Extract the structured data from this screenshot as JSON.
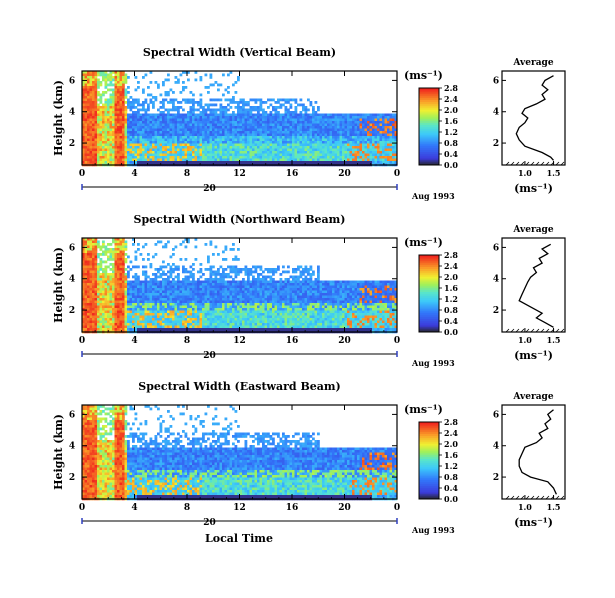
{
  "chart_data": [
    {
      "type": "heatmap",
      "title": "Spectral Width (Vertical Beam)",
      "ylabel": "Height (km)",
      "xlabel": "",
      "x_ticks": [
        "0",
        "4",
        "8",
        "12",
        "16",
        "20",
        "0"
      ],
      "y_ticks": [
        "2",
        "4",
        "6"
      ],
      "xlim": [
        0,
        24
      ],
      "ylim": [
        0.6,
        6.6
      ],
      "date_label": "20",
      "month_label": "Aug 1993",
      "colorbar": {
        "unit": "(ms⁻¹)",
        "ticks": [
          "0.0",
          "0.4",
          "0.8",
          "1.2",
          "1.6",
          "2.0",
          "2.4",
          "2.8"
        ]
      },
      "average": {
        "title": "Average",
        "unit": "(ms⁻¹)",
        "x_ticks": [
          "1.0",
          "1.5"
        ],
        "xlim": [
          0.6,
          1.7
        ],
        "y_ticks": [
          "2",
          "4",
          "6"
        ],
        "profile": [
          [
            1.5,
            0.9
          ],
          [
            1.45,
            1.1
          ],
          [
            1.3,
            1.4
          ],
          [
            1.0,
            1.8
          ],
          [
            0.9,
            2.2
          ],
          [
            0.85,
            2.6
          ],
          [
            0.9,
            3.0
          ],
          [
            1.0,
            3.3
          ],
          [
            1.05,
            3.6
          ],
          [
            0.95,
            3.9
          ],
          [
            1.0,
            4.2
          ],
          [
            1.2,
            4.5
          ],
          [
            1.35,
            4.8
          ],
          [
            1.3,
            5.1
          ],
          [
            1.4,
            5.4
          ],
          [
            1.3,
            5.7
          ],
          [
            1.35,
            6.0
          ],
          [
            1.5,
            6.3
          ]
        ]
      }
    },
    {
      "type": "heatmap",
      "title": "Spectral Width (Northward Beam)",
      "ylabel": "Height (km)",
      "xlabel": "",
      "x_ticks": [
        "0",
        "4",
        "8",
        "12",
        "16",
        "20",
        "0"
      ],
      "y_ticks": [
        "2",
        "4",
        "6"
      ],
      "xlim": [
        0,
        24
      ],
      "ylim": [
        0.6,
        6.6
      ],
      "date_label": "20",
      "month_label": "Aug 1993",
      "colorbar": {
        "unit": "(ms⁻¹)",
        "ticks": [
          "0.0",
          "0.4",
          "0.8",
          "1.2",
          "1.6",
          "2.0",
          "2.4",
          "2.8"
        ]
      },
      "average": {
        "title": "Average",
        "unit": "(ms⁻¹)",
        "x_ticks": [
          "1.0",
          "1.5"
        ],
        "xlim": [
          0.6,
          1.7
        ],
        "y_ticks": [
          "2",
          "4",
          "6"
        ],
        "profile": [
          [
            1.5,
            0.9
          ],
          [
            1.35,
            1.2
          ],
          [
            1.2,
            1.5
          ],
          [
            1.3,
            1.8
          ],
          [
            1.1,
            2.2
          ],
          [
            0.9,
            2.6
          ],
          [
            0.95,
            3.0
          ],
          [
            1.0,
            3.4
          ],
          [
            1.05,
            3.8
          ],
          [
            1.1,
            4.1
          ],
          [
            1.2,
            4.4
          ],
          [
            1.15,
            4.7
          ],
          [
            1.3,
            5.0
          ],
          [
            1.25,
            5.3
          ],
          [
            1.4,
            5.6
          ],
          [
            1.3,
            5.9
          ],
          [
            1.45,
            6.2
          ]
        ]
      }
    },
    {
      "type": "heatmap",
      "title": "Spectral Width (Eastward Beam)",
      "ylabel": "Height (km)",
      "xlabel": "Local Time",
      "x_ticks": [
        "0",
        "4",
        "8",
        "12",
        "16",
        "20",
        "0"
      ],
      "y_ticks": [
        "2",
        "4",
        "6"
      ],
      "xlim": [
        0,
        24
      ],
      "ylim": [
        0.6,
        6.6
      ],
      "date_label": "20",
      "month_label": "Aug 1993",
      "colorbar": {
        "unit": "(ms⁻¹)",
        "ticks": [
          "0.0",
          "0.4",
          "0.8",
          "1.2",
          "1.6",
          "2.0",
          "2.4",
          "2.8"
        ]
      },
      "average": {
        "title": "Average",
        "unit": "(ms⁻¹)",
        "x_ticks": [
          "1.0",
          "1.5"
        ],
        "xlim": [
          0.6,
          1.7
        ],
        "y_ticks": [
          "2",
          "4",
          "6"
        ],
        "profile": [
          [
            1.55,
            0.9
          ],
          [
            1.5,
            1.3
          ],
          [
            1.4,
            1.7
          ],
          [
            1.1,
            2.0
          ],
          [
            0.95,
            2.3
          ],
          [
            0.9,
            2.7
          ],
          [
            0.9,
            3.1
          ],
          [
            0.95,
            3.5
          ],
          [
            1.0,
            3.9
          ],
          [
            1.2,
            4.2
          ],
          [
            1.3,
            4.5
          ],
          [
            1.25,
            4.8
          ],
          [
            1.4,
            5.1
          ],
          [
            1.35,
            5.4
          ],
          [
            1.45,
            5.7
          ],
          [
            1.4,
            6.0
          ],
          [
            1.5,
            6.3
          ]
        ]
      }
    }
  ]
}
